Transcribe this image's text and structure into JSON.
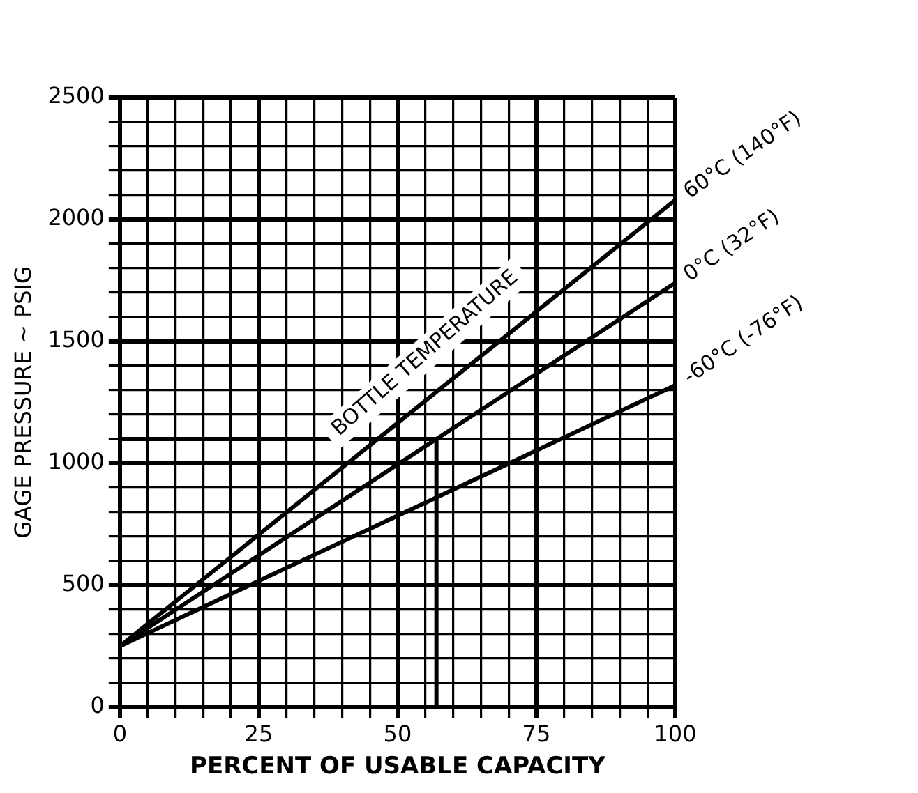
{
  "chart_data": {
    "type": "line",
    "xlabel": "PERCENT OF USABLE CAPACITY",
    "ylabel": "GAGE PRESSURE ~ PSIG",
    "annotations": [
      "BOTTLE TEMPERATURE"
    ],
    "series": [
      {
        "name": "60°C (140°F)",
        "color": "#000000",
        "x": [
          0,
          100
        ],
        "values": [
          250,
          2080
        ]
      },
      {
        "name": "0°C (32°F)",
        "color": "#000000",
        "x": [
          0,
          100
        ],
        "values": [
          250,
          1740
        ]
      },
      {
        "name": "-60°C (-76°F)",
        "color": "#000000",
        "x": [
          0,
          100
        ],
        "values": [
          250,
          1320
        ]
      },
      {
        "type": "line",
        "color": "#000000",
        "x": [
          0,
          57,
          57
        ],
        "values": [
          1100,
          1100,
          0
        ]
      }
    ],
    "xlim": [
      0,
      100
    ],
    "xticks": [
      0,
      {
        "value": 5,
        "label": null
      },
      {
        "value": 10,
        "label": null
      },
      {
        "value": 15,
        "label": null
      },
      {
        "value": 20,
        "label": null
      },
      25,
      {
        "value": 30,
        "label": null
      },
      {
        "value": 35,
        "label": null
      },
      {
        "value": 40,
        "label": null
      },
      {
        "value": 45,
        "label": null
      },
      50,
      {
        "value": 55,
        "label": null
      },
      {
        "value": 60,
        "label": null
      },
      {
        "value": 65,
        "label": null
      },
      {
        "value": 70,
        "label": null
      },
      75,
      {
        "value": 80,
        "label": null
      },
      {
        "value": 85,
        "label": null
      },
      {
        "value": 90,
        "label": null
      },
      {
        "value": 95,
        "label": null
      },
      100
    ],
    "ylim": [
      0,
      2500
    ],
    "yticks": [
      0,
      {
        "value": 100,
        "label": null
      },
      {
        "value": 200,
        "label": null
      },
      {
        "value": 300,
        "label": null
      },
      {
        "value": 400,
        "label": null
      },
      500,
      {
        "value": 600,
        "label": null
      },
      {
        "value": 700,
        "label": null
      },
      {
        "value": 800,
        "label": null
      },
      {
        "value": 900,
        "label": null
      },
      1000,
      {
        "value": 1100,
        "label": null
      },
      {
        "value": 1200,
        "label": null
      },
      {
        "value": 1300,
        "label": null
      },
      {
        "value": 1400,
        "label": null
      },
      1500,
      {
        "value": 1600,
        "label": null
      },
      {
        "value": 1700,
        "label": null
      },
      {
        "value": 1800,
        "label": null
      },
      {
        "value": 1900,
        "label": null
      },
      2000,
      {
        "value": 2100,
        "label": null
      },
      {
        "value": 2200,
        "label": null
      },
      {
        "value": 2300,
        "label": null
      },
      {
        "value": 2400,
        "label": null
      },
      2500
    ],
    "grid": true,
    "legend": false,
    "marker": "none",
    "line_style": "solid"
  }
}
